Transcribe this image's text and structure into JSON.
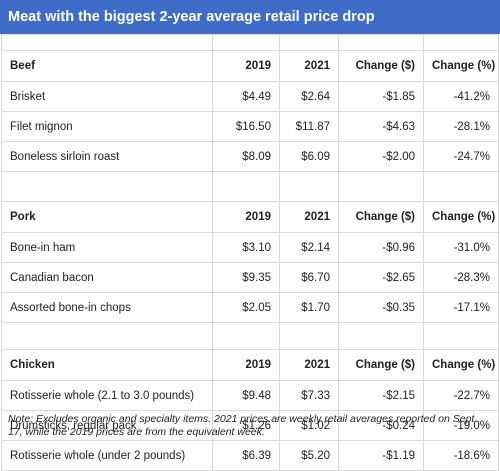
{
  "title": "Meat with the biggest 2-year average retail price drop",
  "columns": {
    "y2019": "2019",
    "y2021": "2021",
    "change_usd": "Change ($)",
    "change_pct": "Change (%)"
  },
  "sections": [
    {
      "name": "Beef",
      "rows": [
        {
          "item": "Brisket",
          "y2019": "$4.49",
          "y2021": "$2.64",
          "change_usd": "-$1.85",
          "change_pct": "-41.2%"
        },
        {
          "item": "Filet mignon",
          "y2019": "$16.50",
          "y2021": "$11.87",
          "change_usd": "-$4.63",
          "change_pct": "-28.1%"
        },
        {
          "item": "Boneless sirloin roast",
          "y2019": "$8.09",
          "y2021": "$6.09",
          "change_usd": "-$2.00",
          "change_pct": "-24.7%"
        }
      ]
    },
    {
      "name": "Pork",
      "rows": [
        {
          "item": "Bone-in ham",
          "y2019": "$3.10",
          "y2021": "$2.14",
          "change_usd": "-$0.96",
          "change_pct": "-31.0%"
        },
        {
          "item": "Canadian bacon",
          "y2019": "$9.35",
          "y2021": "$6.70",
          "change_usd": "-$2.65",
          "change_pct": "-28.3%"
        },
        {
          "item": "Assorted bone-in chops",
          "y2019": "$2.05",
          "y2021": "$1.70",
          "change_usd": "-$0.35",
          "change_pct": "-17.1%"
        }
      ]
    },
    {
      "name": "Chicken",
      "rows": [
        {
          "item": "Rotisserie whole (2.1 to 3.0 pounds)",
          "y2019": "$9.48",
          "y2021": "$7.33",
          "change_usd": "-$2.15",
          "change_pct": "-22.7%"
        },
        {
          "item": "Drumsticks, regular pack",
          "y2019": "$1.26",
          "y2021": "$1.02",
          "change_usd": "-$0.24",
          "change_pct": "-19.0%"
        },
        {
          "item": "Rotisserie whole (under 2 pounds)",
          "y2019": "$6.39",
          "y2021": "$5.20",
          "change_usd": "-$1.19",
          "change_pct": "-18.6%"
        }
      ]
    }
  ],
  "note": "Note: Excludes organic and specialty items. 2021 prices are weekly retail averages reported on Sept. 17, while the 2019 prices are from the equivalent week.",
  "colors": {
    "title_bg": "#3f6cc9",
    "title_text": "#ffffff",
    "grid": "#d9d9d9",
    "text": "#222222"
  }
}
